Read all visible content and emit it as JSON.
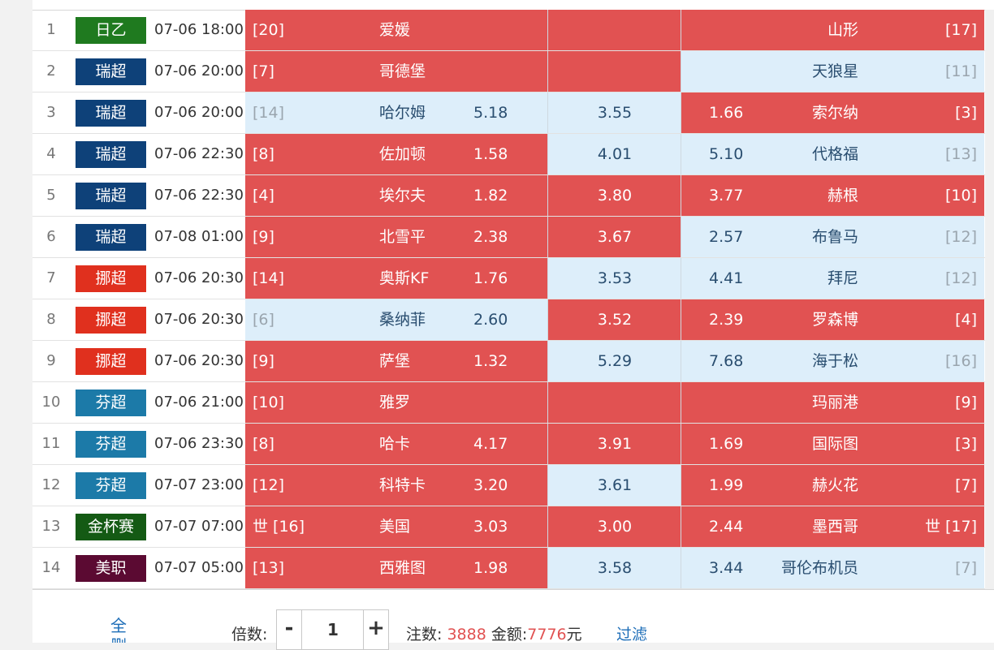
{
  "colors": {
    "red_cell": "#e15252",
    "blue_cell": "#ddeefa",
    "link": "#1e6eb8"
  },
  "leagues": {
    "日乙": "#1f7a1f",
    "瑞超": "#0e4179",
    "挪超": "#e0301e",
    "芬超": "#1c7aa8",
    "金杯赛": "#145a14",
    "美职": "#5b0a32"
  },
  "matches": [
    {
      "no": "1",
      "league": "日乙",
      "time": "07-06 18:00",
      "home_rank": "[20]",
      "home": "爱媛",
      "home_odds": "",
      "draw_odds": "",
      "away_odds": "",
      "away": "山形",
      "away_rank": "[17]",
      "sel": [
        "red",
        "red",
        "red"
      ]
    },
    {
      "no": "2",
      "league": "瑞超",
      "time": "07-06 20:00",
      "home_rank": "[7]",
      "home": "哥德堡",
      "home_odds": "",
      "draw_odds": "",
      "away_odds": "",
      "away": "天狼星",
      "away_rank": "[11]",
      "sel": [
        "red",
        "red",
        "blue"
      ]
    },
    {
      "no": "3",
      "league": "瑞超",
      "time": "07-06 20:00",
      "home_rank": "[14]",
      "home": "哈尔姆",
      "home_odds": "5.18",
      "draw_odds": "3.55",
      "away_odds": "1.66",
      "away": "索尔纳",
      "away_rank": "[3]",
      "sel": [
        "blue",
        "blue",
        "red"
      ]
    },
    {
      "no": "4",
      "league": "瑞超",
      "time": "07-06 22:30",
      "home_rank": "[8]",
      "home": "佐加顿",
      "home_odds": "1.58",
      "draw_odds": "4.01",
      "away_odds": "5.10",
      "away": "代格福",
      "away_rank": "[13]",
      "sel": [
        "red",
        "blue",
        "blue"
      ]
    },
    {
      "no": "5",
      "league": "瑞超",
      "time": "07-06 22:30",
      "home_rank": "[4]",
      "home": "埃尔夫",
      "home_odds": "1.82",
      "draw_odds": "3.80",
      "away_odds": "3.77",
      "away": "赫根",
      "away_rank": "[10]",
      "sel": [
        "red",
        "red",
        "red"
      ]
    },
    {
      "no": "6",
      "league": "瑞超",
      "time": "07-08 01:00",
      "home_rank": "[9]",
      "home": "北雪平",
      "home_odds": "2.38",
      "draw_odds": "3.67",
      "away_odds": "2.57",
      "away": "布鲁马",
      "away_rank": "[12]",
      "sel": [
        "red",
        "red",
        "blue"
      ]
    },
    {
      "no": "7",
      "league": "挪超",
      "time": "07-06 20:30",
      "home_rank": "[14]",
      "home": "奥斯KF",
      "home_odds": "1.76",
      "draw_odds": "3.53",
      "away_odds": "4.41",
      "away": "拜尼",
      "away_rank": "[12]",
      "sel": [
        "red",
        "blue",
        "blue"
      ]
    },
    {
      "no": "8",
      "league": "挪超",
      "time": "07-06 20:30",
      "home_rank": "[6]",
      "home": "桑纳菲",
      "home_odds": "2.60",
      "draw_odds": "3.52",
      "away_odds": "2.39",
      "away": "罗森博",
      "away_rank": "[4]",
      "sel": [
        "blue",
        "red",
        "red"
      ]
    },
    {
      "no": "9",
      "league": "挪超",
      "time": "07-06 20:30",
      "home_rank": "[9]",
      "home": "萨堡",
      "home_odds": "1.32",
      "draw_odds": "5.29",
      "away_odds": "7.68",
      "away": "海于松",
      "away_rank": "[16]",
      "sel": [
        "red",
        "blue",
        "blue"
      ]
    },
    {
      "no": "10",
      "league": "芬超",
      "time": "07-06 21:00",
      "home_rank": "[10]",
      "home": "雅罗",
      "home_odds": "",
      "draw_odds": "",
      "away_odds": "",
      "away": "玛丽港",
      "away_rank": "[9]",
      "sel": [
        "red",
        "red",
        "red"
      ]
    },
    {
      "no": "11",
      "league": "芬超",
      "time": "07-06 23:30",
      "home_rank": "[8]",
      "home": "哈卡",
      "home_odds": "4.17",
      "draw_odds": "3.91",
      "away_odds": "1.69",
      "away": "国际图",
      "away_rank": "[3]",
      "sel": [
        "red",
        "red",
        "red"
      ]
    },
    {
      "no": "12",
      "league": "芬超",
      "time": "07-07 23:00",
      "home_rank": "[12]",
      "home": "科特卡",
      "home_odds": "3.20",
      "draw_odds": "3.61",
      "away_odds": "1.99",
      "away": "赫火花",
      "away_rank": "[7]",
      "sel": [
        "red",
        "blue",
        "red"
      ]
    },
    {
      "no": "13",
      "league": "金杯赛",
      "time": "07-07 07:00",
      "home_rank": "世 [16]",
      "home": "美国",
      "home_odds": "3.03",
      "draw_odds": "3.00",
      "away_odds": "2.44",
      "away": "墨西哥",
      "away_rank": "世 [17]",
      "sel": [
        "red",
        "red",
        "red"
      ]
    },
    {
      "no": "14",
      "league": "美职",
      "time": "07-07 05:00",
      "home_rank": "[13]",
      "home": "西雅图",
      "home_odds": "1.98",
      "draw_odds": "3.58",
      "away_odds": "3.44",
      "away": "哥伦布机员",
      "away_rank": "[7]",
      "sel": [
        "red",
        "blue",
        "blue"
      ]
    }
  ],
  "footer": {
    "filter_all": "全",
    "filter_all_line2": "删",
    "multiplier_label": "倍数:",
    "minus": "-",
    "plus": "+",
    "multiplier_value": "1",
    "bets_label": "注数:",
    "bets_count": "3888",
    "amount_label": "金额:",
    "amount_value": "7776",
    "currency": "元",
    "filter": "过滤"
  }
}
